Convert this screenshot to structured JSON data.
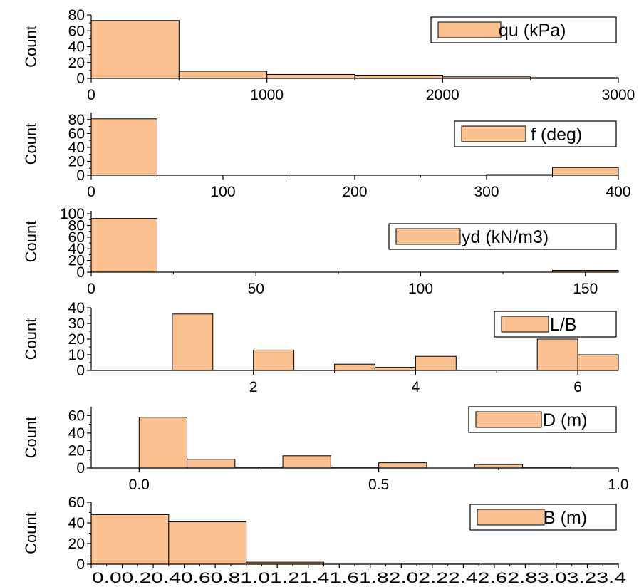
{
  "bar_color": "#fac090",
  "edge_color": "#000000",
  "chart_data": [
    {
      "type": "bar",
      "legend": "qu (kPa)",
      "ylabel": "Count",
      "xlim": [
        0,
        3000
      ],
      "ylim": [
        0,
        80
      ],
      "xticks": [
        0,
        1000,
        2000,
        3000
      ],
      "xtick_labels": [
        "0",
        "1000",
        "2000",
        "3000"
      ],
      "yticks": [
        0,
        20,
        40,
        60,
        80
      ],
      "bins": [
        {
          "x0": 0,
          "x1": 500,
          "count": 73
        },
        {
          "x0": 500,
          "x1": 1000,
          "count": 9
        },
        {
          "x0": 1000,
          "x1": 1500,
          "count": 5
        },
        {
          "x0": 1500,
          "x1": 2000,
          "count": 4
        },
        {
          "x0": 2000,
          "x1": 2500,
          "count": 2
        },
        {
          "x0": 2500,
          "x1": 3000,
          "count": 1
        }
      ]
    },
    {
      "type": "bar",
      "legend": "f (deg)",
      "ylabel": "Count",
      "xlim": [
        0,
        400
      ],
      "ylim": [
        0,
        90
      ],
      "xticks": [
        0,
        100,
        200,
        300,
        400
      ],
      "xtick_labels": [
        "0",
        "100",
        "200",
        "300",
        "400"
      ],
      "yticks": [
        0,
        20,
        40,
        60,
        80
      ],
      "bins": [
        {
          "x0": 0,
          "x1": 50,
          "count": 81
        },
        {
          "x0": 300,
          "x1": 350,
          "count": 1
        },
        {
          "x0": 350,
          "x1": 400,
          "count": 11
        }
      ]
    },
    {
      "type": "bar",
      "legend": "yd  (kN/m3)",
      "ylabel": "Count",
      "xlim": [
        0,
        160
      ],
      "ylim": [
        0,
        105
      ],
      "xticks": [
        0,
        50,
        100,
        150
      ],
      "xtick_labels": [
        "0",
        "50",
        "100",
        "150"
      ],
      "yticks": [
        0,
        20,
        40,
        60,
        80,
        100
      ],
      "bins": [
        {
          "x0": 0,
          "x1": 20,
          "count": 92
        },
        {
          "x0": 140,
          "x1": 160,
          "count": 3
        }
      ]
    },
    {
      "type": "bar",
      "legend": "L/B",
      "ylabel": "Count",
      "xlim": [
        0,
        6.5
      ],
      "ylim": [
        0,
        40
      ],
      "xticks": [
        2,
        4,
        6
      ],
      "xtick_labels": [
        "2",
        "4",
        "6"
      ],
      "yticks": [
        0,
        10,
        20,
        30,
        40
      ],
      "bins": [
        {
          "x0": 0.5,
          "x1": 1.0,
          "count": 0
        },
        {
          "x0": 1.0,
          "x1": 1.5,
          "count": 36
        },
        {
          "x0": 2.0,
          "x1": 2.5,
          "count": 13
        },
        {
          "x0": 3.0,
          "x1": 3.5,
          "count": 4
        },
        {
          "x0": 3.5,
          "x1": 4.0,
          "count": 2
        },
        {
          "x0": 4.0,
          "x1": 4.5,
          "count": 9
        },
        {
          "x0": 5.5,
          "x1": 6.0,
          "count": 20
        },
        {
          "x0": 6.0,
          "x1": 6.5,
          "count": 10
        }
      ]
    },
    {
      "type": "bar",
      "legend": "D (m)",
      "ylabel": "Count",
      "xlim": [
        -0.1,
        1.0
      ],
      "ylim": [
        0,
        70
      ],
      "xticks": [
        0.0,
        0.5,
        1.0
      ],
      "xtick_labels": [
        "0.0",
        "0.5",
        "1.0"
      ],
      "yticks": [
        0,
        20,
        40,
        60
      ],
      "bins": [
        {
          "x0": 0.0,
          "x1": 0.1,
          "count": 58
        },
        {
          "x0": 0.1,
          "x1": 0.2,
          "count": 10
        },
        {
          "x0": 0.2,
          "x1": 0.3,
          "count": 1
        },
        {
          "x0": 0.3,
          "x1": 0.4,
          "count": 14
        },
        {
          "x0": 0.4,
          "x1": 0.5,
          "count": 1
        },
        {
          "x0": 0.5,
          "x1": 0.6,
          "count": 6
        },
        {
          "x0": 0.7,
          "x1": 0.8,
          "count": 4
        },
        {
          "x0": 0.8,
          "x1": 0.9,
          "count": 1
        }
      ]
    },
    {
      "type": "bar",
      "legend": "B (m)",
      "ylabel": "Count",
      "xlim": [
        0,
        3.4
      ],
      "ylim": [
        0,
        60
      ],
      "xticks": [
        0.0,
        0.2,
        0.4,
        0.6,
        0.8,
        1.0,
        1.2,
        1.4,
        1.6,
        1.8,
        2.0,
        2.2,
        2.4,
        2.6,
        2.8,
        3.0,
        3.2,
        3.4
      ],
      "xtick_labels_text": "0.00.20.40.60.81.01.21.41.61.82.02.22.42.62.83.03.23.4",
      "yticks": [
        0,
        20,
        40,
        60
      ],
      "bins": [
        {
          "x0": 0.0,
          "x1": 0.5,
          "count": 48
        },
        {
          "x0": 0.5,
          "x1": 1.0,
          "count": 41
        },
        {
          "x0": 1.0,
          "x1": 1.5,
          "count": 2
        },
        {
          "x0": 2.0,
          "x1": 2.5,
          "count": 1
        },
        {
          "x0": 3.0,
          "x1": 3.4,
          "count": 1
        }
      ]
    }
  ]
}
